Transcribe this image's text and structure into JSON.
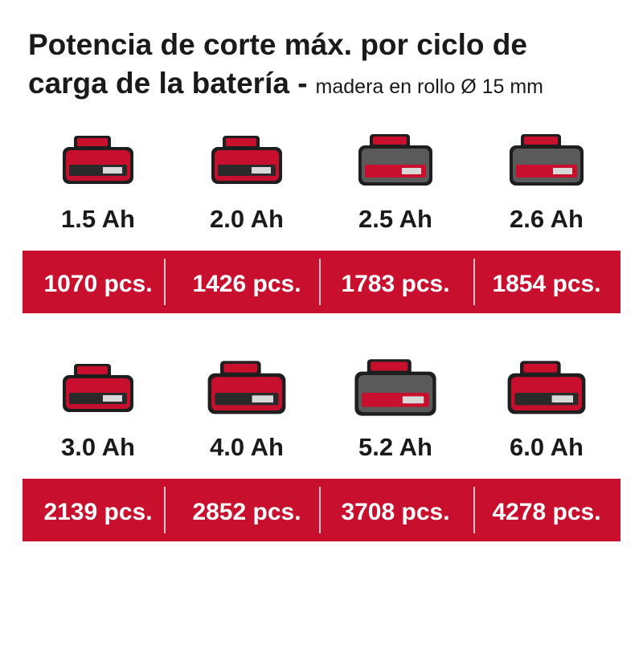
{
  "title": {
    "line1": "Potencia de corte máx. por ciclo de",
    "line2": "carga de la batería -",
    "subtitle": "madera en rollo Ø 15 mm"
  },
  "rows": [
    [
      {
        "capacity": "1.5 Ah",
        "cuts": "1070 pcs."
      },
      {
        "capacity": "2.0 Ah",
        "cuts": "1426 pcs."
      },
      {
        "capacity": "2.5 Ah",
        "cuts": "1783 pcs."
      },
      {
        "capacity": "2.6 Ah",
        "cuts": "1854 pcs."
      }
    ],
    [
      {
        "capacity": "3.0 Ah",
        "cuts": "2139 pcs."
      },
      {
        "capacity": "4.0 Ah",
        "cuts": "2852 pcs."
      },
      {
        "capacity": "5.2 Ah",
        "cuts": "3708 pcs."
      },
      {
        "capacity": "6.0 Ah",
        "cuts": "4278 pcs."
      }
    ]
  ]
}
